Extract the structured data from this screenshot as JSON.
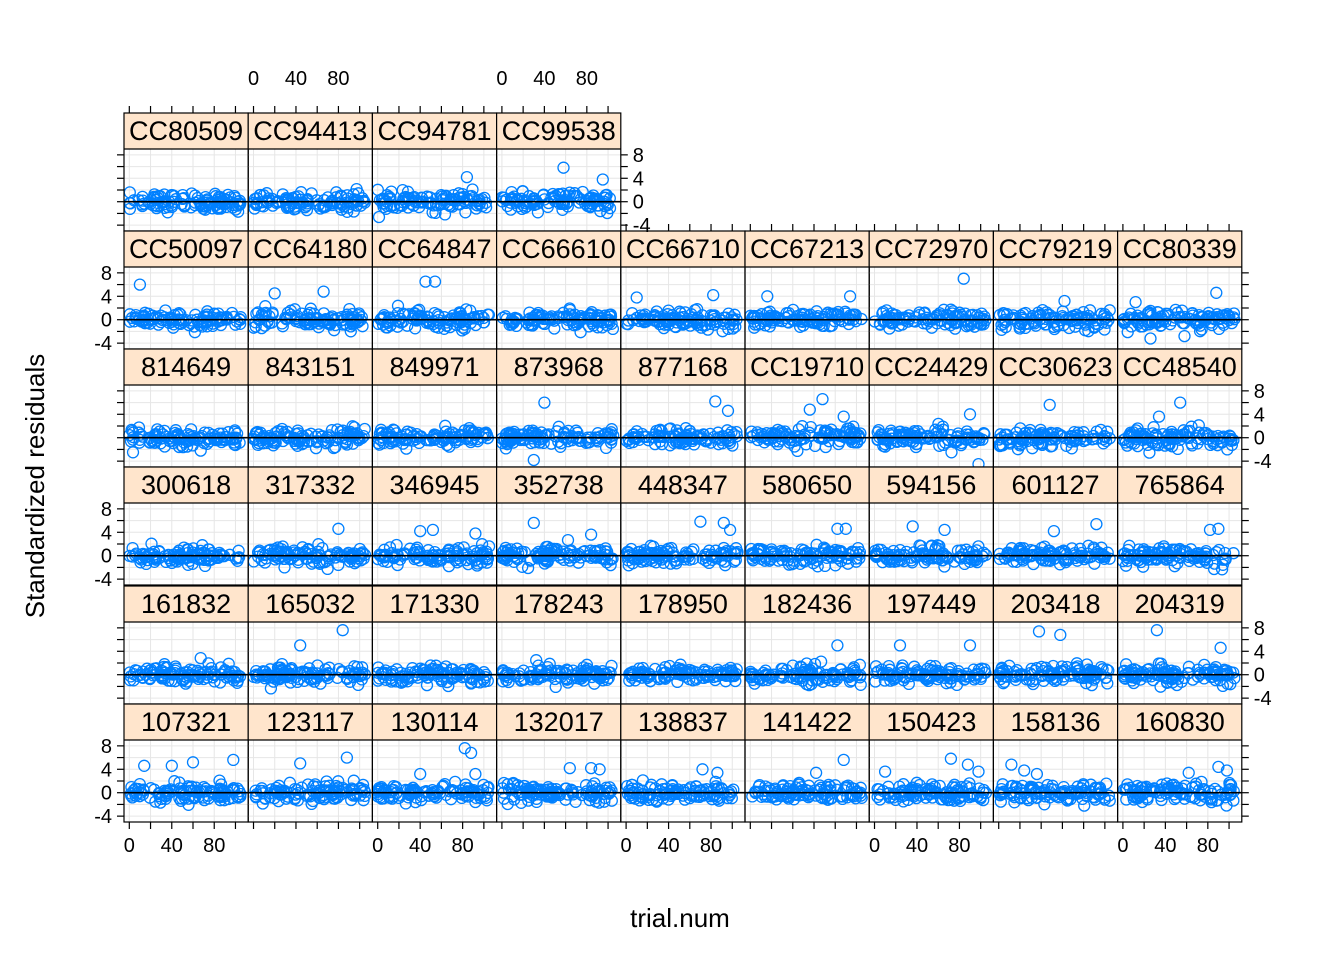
{
  "chart_data": {
    "type": "scatter",
    "layout": "lattice, 9 columns x 6 rows",
    "xlabel": "trial.num",
    "ylabel": "Standardized residuals",
    "xlim": [
      -5,
      112
    ],
    "ylim": [
      -5,
      9
    ],
    "x_ticks": [
      0,
      40,
      80
    ],
    "y_ticks": [
      8,
      4,
      0,
      -4
    ],
    "reference_line_y": 0,
    "grid": true,
    "colors": {
      "points": "#0080ff",
      "strip_fill": "#ffe5cc",
      "grid": "#e6e6e6",
      "frame": "#000000"
    },
    "panels": [
      {
        "label": "CC80509",
        "row": 0,
        "col": 0
      },
      {
        "label": "CC94413",
        "row": 0,
        "col": 1
      },
      {
        "label": "CC94781",
        "row": 0,
        "col": 2
      },
      {
        "label": "CC99538",
        "row": 0,
        "col": 3
      },
      {
        "label": "CC50097",
        "row": 1,
        "col": 0
      },
      {
        "label": "CC64180",
        "row": 1,
        "col": 1
      },
      {
        "label": "CC64847",
        "row": 1,
        "col": 2
      },
      {
        "label": "CC66610",
        "row": 1,
        "col": 3
      },
      {
        "label": "CC66710",
        "row": 1,
        "col": 4
      },
      {
        "label": "CC67213",
        "row": 1,
        "col": 5
      },
      {
        "label": "CC72970",
        "row": 1,
        "col": 6
      },
      {
        "label": "CC79219",
        "row": 1,
        "col": 7
      },
      {
        "label": "CC80339",
        "row": 1,
        "col": 8
      },
      {
        "label": "814649",
        "row": 2,
        "col": 0
      },
      {
        "label": "843151",
        "row": 2,
        "col": 1
      },
      {
        "label": "849971",
        "row": 2,
        "col": 2
      },
      {
        "label": "873968",
        "row": 2,
        "col": 3
      },
      {
        "label": "877168",
        "row": 2,
        "col": 4
      },
      {
        "label": "CC19710",
        "row": 2,
        "col": 5
      },
      {
        "label": "CC24429",
        "row": 2,
        "col": 6
      },
      {
        "label": "CC30623",
        "row": 2,
        "col": 7
      },
      {
        "label": "CC48540",
        "row": 2,
        "col": 8
      },
      {
        "label": "300618",
        "row": 3,
        "col": 0
      },
      {
        "label": "317332",
        "row": 3,
        "col": 1
      },
      {
        "label": "346945",
        "row": 3,
        "col": 2
      },
      {
        "label": "352738",
        "row": 3,
        "col": 3
      },
      {
        "label": "448347",
        "row": 3,
        "col": 4
      },
      {
        "label": "580650",
        "row": 3,
        "col": 5
      },
      {
        "label": "594156",
        "row": 3,
        "col": 6
      },
      {
        "label": "601127",
        "row": 3,
        "col": 7
      },
      {
        "label": "765864",
        "row": 3,
        "col": 8
      },
      {
        "label": "161832",
        "row": 4,
        "col": 0
      },
      {
        "label": "165032",
        "row": 4,
        "col": 1
      },
      {
        "label": "171330",
        "row": 4,
        "col": 2
      },
      {
        "label": "178243",
        "row": 4,
        "col": 3
      },
      {
        "label": "178950",
        "row": 4,
        "col": 4
      },
      {
        "label": "182436",
        "row": 4,
        "col": 5
      },
      {
        "label": "197449",
        "row": 4,
        "col": 6
      },
      {
        "label": "203418",
        "row": 4,
        "col": 7
      },
      {
        "label": "204319",
        "row": 4,
        "col": 8
      },
      {
        "label": "107321",
        "row": 5,
        "col": 0
      },
      {
        "label": "123117",
        "row": 5,
        "col": 1
      },
      {
        "label": "130114",
        "row": 5,
        "col": 2
      },
      {
        "label": "132017",
        "row": 5,
        "col": 3
      },
      {
        "label": "138837",
        "row": 5,
        "col": 4
      },
      {
        "label": "141422",
        "row": 5,
        "col": 5
      },
      {
        "label": "150423",
        "row": 5,
        "col": 6
      },
      {
        "label": "158136",
        "row": 5,
        "col": 7
      },
      {
        "label": "160830",
        "row": 5,
        "col": 8
      }
    ],
    "outliers": {
      "CC94781": [
        [
          84,
          4.2
        ]
      ],
      "CC99538": [
        [
          58,
          5.8
        ],
        [
          95,
          3.8
        ]
      ],
      "CC50097": [
        [
          10,
          6.0
        ]
      ],
      "CC64180": [
        [
          20,
          4.5
        ],
        [
          66,
          4.8
        ]
      ],
      "CC64847": [
        [
          45,
          6.5
        ],
        [
          54,
          6.5
        ]
      ],
      "CC66710": [
        [
          10,
          3.8
        ],
        [
          82,
          4.2
        ]
      ],
      "CC67213": [
        [
          16,
          4.0
        ],
        [
          94,
          4.0
        ]
      ],
      "CC72970": [
        [
          84,
          7.0
        ]
      ],
      "CC79219": [
        [
          62,
          3.2
        ]
      ],
      "CC80339": [
        [
          12,
          3.0
        ],
        [
          88,
          4.6
        ],
        [
          26,
          -3.2
        ],
        [
          58,
          -2.8
        ]
      ],
      "873968": [
        [
          40,
          6.0
        ],
        [
          30,
          -3.8
        ]
      ],
      "877168": [
        [
          84,
          6.2
        ],
        [
          96,
          4.6
        ]
      ],
      "CC19710": [
        [
          68,
          6.6
        ],
        [
          56,
          4.8
        ],
        [
          88,
          3.6
        ]
      ],
      "CC24429": [
        [
          90,
          4.0
        ],
        [
          98,
          -4.5
        ]
      ],
      "CC30623": [
        [
          48,
          5.6
        ]
      ],
      "CC48540": [
        [
          54,
          6.0
        ],
        [
          34,
          3.6
        ]
      ],
      "317332": [
        [
          80,
          4.6
        ]
      ],
      "346945": [
        [
          52,
          4.4
        ],
        [
          40,
          4.2
        ],
        [
          92,
          3.8
        ]
      ],
      "352738": [
        [
          30,
          5.6
        ],
        [
          84,
          3.6
        ]
      ],
      "448347": [
        [
          70,
          5.8
        ],
        [
          92,
          5.6
        ],
        [
          98,
          4.4
        ]
      ],
      "580650": [
        [
          82,
          4.6
        ],
        [
          90,
          4.6
        ]
      ],
      "594156": [
        [
          36,
          5.0
        ],
        [
          66,
          4.4
        ]
      ],
      "601127": [
        [
          92,
          5.4
        ],
        [
          52,
          4.2
        ]
      ],
      "765864": [
        [
          82,
          4.4
        ],
        [
          90,
          4.6
        ]
      ],
      "165032": [
        [
          44,
          5.0
        ],
        [
          84,
          7.6
        ]
      ],
      "182436": [
        [
          82,
          5.0
        ]
      ],
      "197449": [
        [
          24,
          5.0
        ],
        [
          90,
          5.0
        ]
      ],
      "203418": [
        [
          38,
          7.4
        ],
        [
          58,
          6.8
        ]
      ],
      "204319": [
        [
          32,
          7.6
        ],
        [
          92,
          4.6
        ]
      ],
      "107321": [
        [
          14,
          4.6
        ],
        [
          40,
          4.6
        ],
        [
          60,
          5.2
        ],
        [
          98,
          5.6
        ]
      ],
      "123117": [
        [
          44,
          5.0
        ],
        [
          88,
          6.0
        ]
      ],
      "130114": [
        [
          40,
          3.2
        ],
        [
          82,
          7.6
        ],
        [
          88,
          6.8
        ],
        [
          92,
          3.2
        ]
      ],
      "132017": [
        [
          64,
          4.2
        ],
        [
          84,
          4.2
        ],
        [
          92,
          4.0
        ]
      ],
      "138837": [
        [
          72,
          4.0
        ],
        [
          86,
          3.4
        ]
      ],
      "141422": [
        [
          62,
          3.4
        ],
        [
          88,
          5.6
        ]
      ],
      "150423": [
        [
          10,
          3.6
        ],
        [
          72,
          5.8
        ],
        [
          88,
          4.8
        ],
        [
          98,
          3.6
        ]
      ],
      "158136": [
        [
          12,
          4.8
        ],
        [
          24,
          3.8
        ],
        [
          36,
          3.2
        ]
      ],
      "160830": [
        [
          62,
          3.4
        ],
        [
          90,
          4.4
        ],
        [
          98,
          3.8
        ]
      ]
    }
  }
}
